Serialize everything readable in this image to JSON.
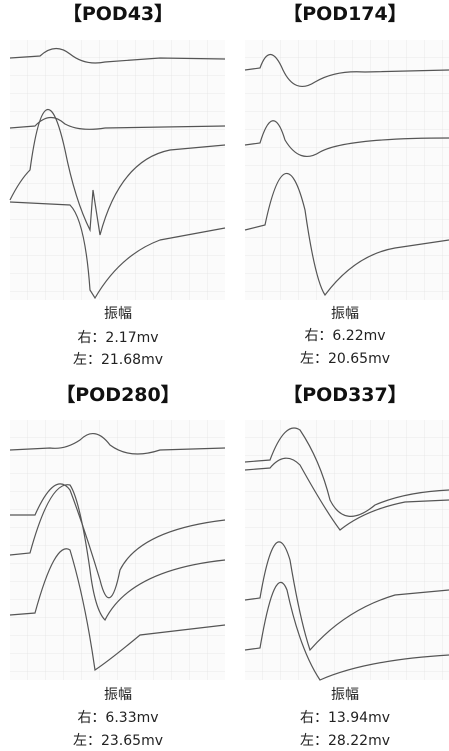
{
  "panels": [
    {
      "title": "【POD43】",
      "amplitude_label": "振幅",
      "right": "右：2.17mv",
      "left": "左：21.68mv"
    },
    {
      "title": "【POD174】",
      "amplitude_label": "振幅",
      "right": "右：6.22mv",
      "left": "左：20.65mv"
    },
    {
      "title": "【POD280】",
      "amplitude_label": "振幅",
      "right": "右：6.33mv",
      "left": "左：23.65mv"
    },
    {
      "title": "【POD337】",
      "amplitude_label": "振幅",
      "right": "右：13.94mv",
      "left": "左：28.22mv"
    }
  ]
}
